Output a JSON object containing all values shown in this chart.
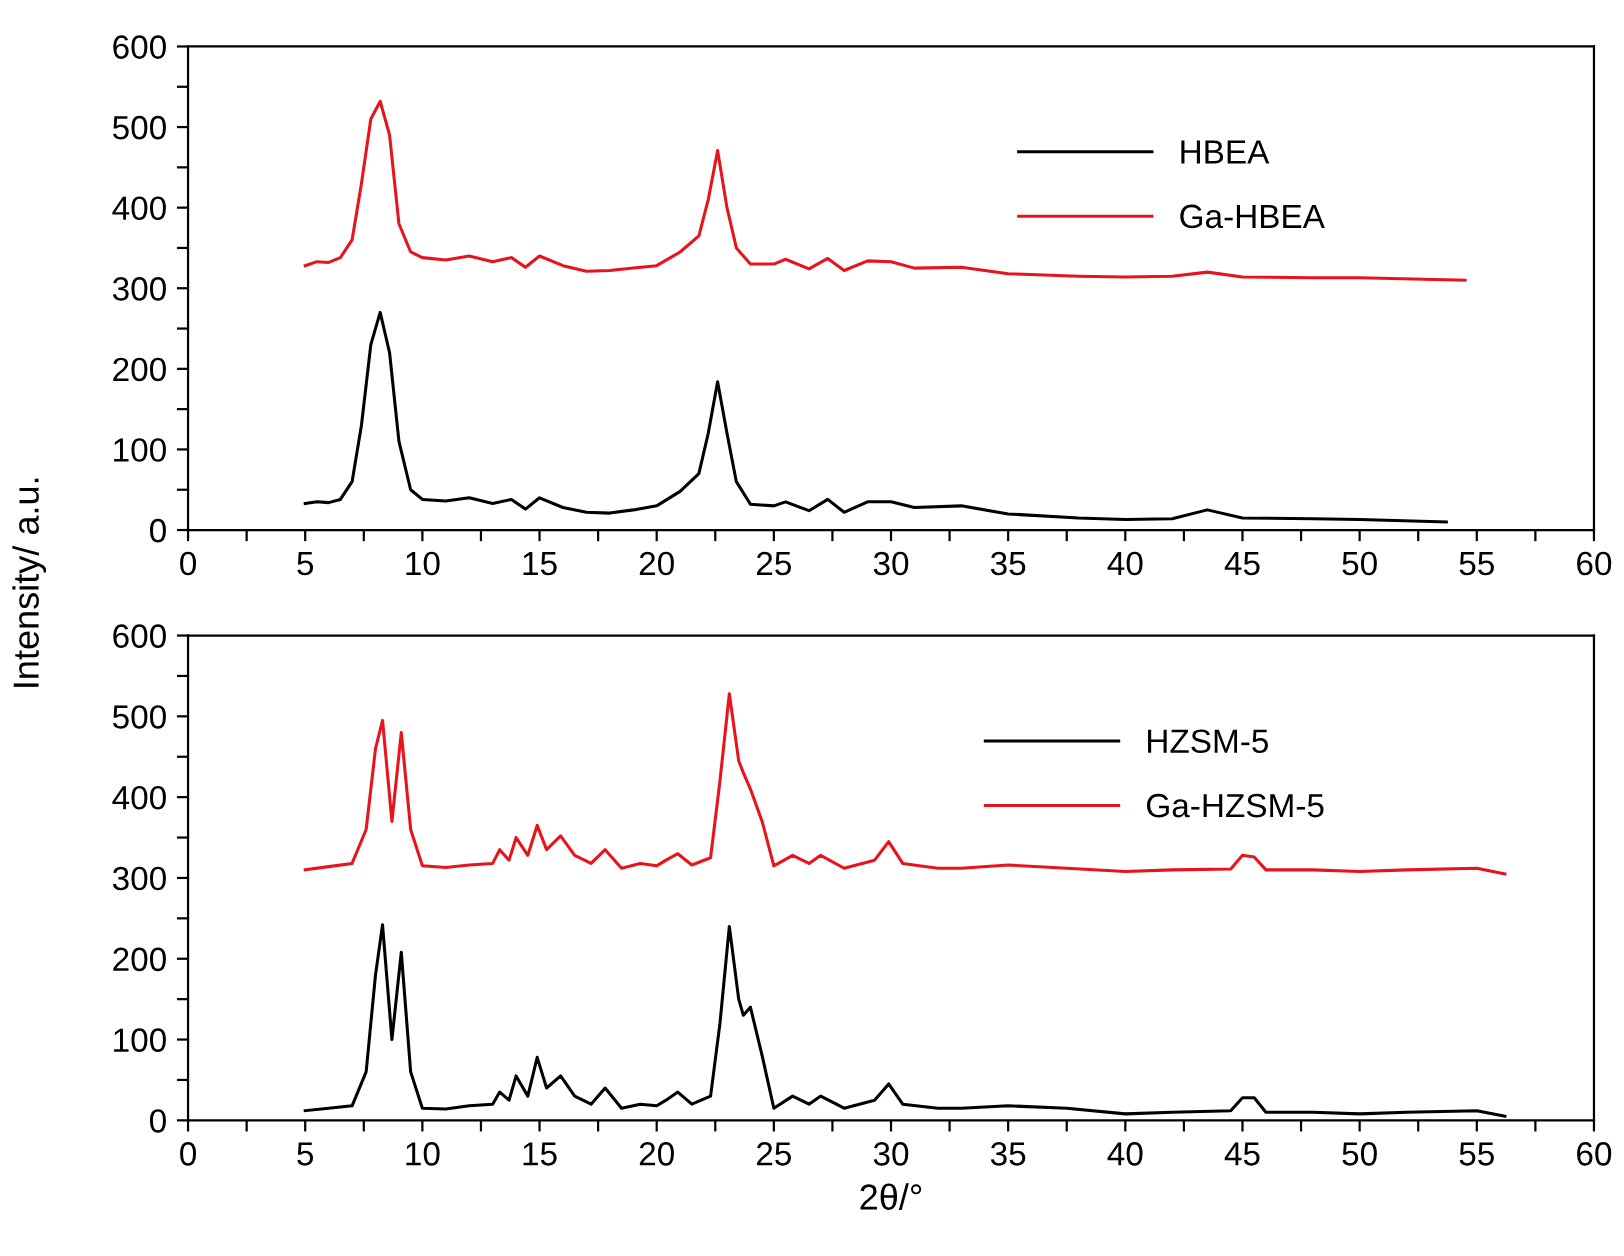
{
  "chart_data": [
    {
      "type": "line",
      "ylabel": "Intensity/ a.u.",
      "legend": "top right",
      "grid": false,
      "xlim": [
        0,
        60
      ],
      "ylim": [
        0,
        600
      ],
      "xticks": [
        0,
        {
          "value": 2.5,
          "label": null
        },
        5,
        {
          "value": 7.5,
          "label": null
        },
        10,
        {
          "value": 12.5,
          "label": null
        },
        15,
        {
          "value": 17.5,
          "label": null
        },
        20,
        {
          "value": 22.5,
          "label": null
        },
        25,
        {
          "value": 27.5,
          "label": null
        },
        30,
        {
          "value": 32.5,
          "label": null
        },
        35,
        {
          "value": 37.5,
          "label": null
        },
        40,
        {
          "value": 42.5,
          "label": null
        },
        45,
        {
          "value": 47.5,
          "label": null
        },
        50,
        {
          "value": 52.5,
          "label": null
        },
        55,
        {
          "value": 57.5,
          "label": null
        },
        60
      ],
      "yticks": [
        0,
        {
          "value": 50,
          "label": null
        },
        100,
        {
          "value": 150,
          "label": null
        },
        200,
        {
          "value": 250,
          "label": null
        },
        300,
        {
          "value": 350,
          "label": null
        },
        400,
        {
          "value": 450,
          "label": null
        },
        500,
        {
          "value": 550,
          "label": null
        },
        600
      ],
      "series": [
        {
          "name": "HBEA",
          "color": "#000000",
          "x": [
            5,
            5.5,
            6,
            6.5,
            7,
            7.4,
            7.8,
            8.2,
            8.6,
            9,
            9.5,
            10,
            11,
            12,
            13,
            13.8,
            14.4,
            15,
            16,
            17,
            18,
            19,
            20,
            21,
            21.8,
            22.2,
            22.6,
            23,
            23.4,
            24,
            25,
            25.5,
            26.5,
            27.3,
            28,
            29,
            30,
            31,
            33,
            35,
            38,
            40,
            42,
            43.5,
            45,
            48,
            50,
            53.7
          ],
          "values": [
            33,
            35,
            34,
            38,
            60,
            130,
            230,
            270,
            220,
            110,
            50,
            38,
            36,
            40,
            33,
            38,
            26,
            40,
            28,
            22,
            21,
            25,
            30,
            48,
            70,
            120,
            184,
            120,
            60,
            32,
            30,
            35,
            24,
            38,
            22,
            35,
            35,
            28,
            30,
            20,
            15,
            13,
            14,
            25,
            15,
            14,
            13,
            10
          ]
        },
        {
          "name": "Ga-HBEA",
          "color": "#e8141c",
          "x": [
            5,
            5.5,
            6,
            6.5,
            7,
            7.4,
            7.8,
            8.2,
            8.6,
            9,
            9.5,
            10,
            11,
            12,
            13,
            13.8,
            14.4,
            15,
            16,
            17,
            18,
            19,
            20,
            21,
            21.8,
            22.2,
            22.6,
            23,
            23.4,
            24,
            25,
            25.5,
            26.5,
            27.3,
            28,
            29,
            30,
            31,
            33,
            35,
            38,
            40,
            42,
            43.5,
            45,
            48,
            50,
            54.5
          ],
          "values": [
            328,
            333,
            332,
            338,
            360,
            430,
            510,
            532,
            490,
            380,
            345,
            338,
            335,
            340,
            333,
            338,
            326,
            340,
            328,
            321,
            322,
            325,
            328,
            345,
            365,
            410,
            471,
            400,
            350,
            330,
            330,
            336,
            324,
            337,
            322,
            334,
            333,
            325,
            326,
            318,
            315,
            314,
            315,
            320,
            314,
            313,
            313,
            310
          ]
        }
      ]
    },
    {
      "type": "line",
      "xlabel": "2θ/°",
      "legend": "top right",
      "grid": false,
      "xlim": [
        0,
        60
      ],
      "ylim": [
        0,
        600
      ],
      "xticks": [
        0,
        {
          "value": 2.5,
          "label": null
        },
        5,
        {
          "value": 7.5,
          "label": null
        },
        10,
        {
          "value": 12.5,
          "label": null
        },
        15,
        {
          "value": 17.5,
          "label": null
        },
        20,
        {
          "value": 22.5,
          "label": null
        },
        25,
        {
          "value": 27.5,
          "label": null
        },
        30,
        {
          "value": 32.5,
          "label": null
        },
        35,
        {
          "value": 37.5,
          "label": null
        },
        40,
        {
          "value": 42.5,
          "label": null
        },
        45,
        {
          "value": 47.5,
          "label": null
        },
        50,
        {
          "value": 52.5,
          "label": null
        },
        55,
        {
          "value": 57.5,
          "label": null
        },
        60
      ],
      "yticks": [
        0,
        {
          "value": 50,
          "label": null
        },
        100,
        {
          "value": 150,
          "label": null
        },
        200,
        {
          "value": 250,
          "label": null
        },
        300,
        {
          "value": 350,
          "label": null
        },
        400,
        {
          "value": 450,
          "label": null
        },
        500,
        {
          "value": 550,
          "label": null
        },
        600
      ],
      "series": [
        {
          "name": "HZSM-5",
          "color": "#000000",
          "x": [
            5,
            6,
            7,
            7.6,
            8,
            8.3,
            8.7,
            9.1,
            9.5,
            10,
            11,
            12,
            13,
            13.3,
            13.7,
            14,
            14.5,
            14.9,
            15.3,
            15.9,
            16.5,
            17.2,
            17.8,
            18.5,
            19.3,
            20,
            20.4,
            20.9,
            21.5,
            22.3,
            22.7,
            23.1,
            23.5,
            23.7,
            24,
            24.5,
            25,
            25.8,
            26.5,
            27,
            28,
            29.3,
            29.9,
            30.5,
            32,
            33,
            35,
            37.5,
            40,
            42,
            44.5,
            45,
            45.5,
            46,
            48,
            50,
            52,
            55,
            56.2
          ],
          "values": [
            12,
            15,
            18,
            60,
            180,
            242,
            100,
            208,
            60,
            15,
            14,
            18,
            20,
            35,
            25,
            55,
            30,
            78,
            40,
            55,
            30,
            20,
            40,
            15,
            20,
            18,
            25,
            35,
            20,
            30,
            120,
            240,
            150,
            130,
            140,
            80,
            15,
            30,
            20,
            30,
            15,
            25,
            45,
            20,
            15,
            15,
            18,
            15,
            8,
            10,
            12,
            28,
            28,
            10,
            10,
            8,
            10,
            12,
            5
          ]
        },
        {
          "name": "Ga-HZSM-5",
          "color": "#e8141c",
          "x": [
            5,
            6,
            7,
            7.6,
            8,
            8.3,
            8.7,
            9.1,
            9.5,
            10,
            11,
            12,
            13,
            13.3,
            13.7,
            14,
            14.5,
            14.9,
            15.3,
            15.9,
            16.5,
            17.2,
            17.8,
            18.5,
            19.3,
            20,
            20.4,
            20.9,
            21.5,
            22.3,
            22.7,
            23.1,
            23.5,
            23.7,
            24,
            24.5,
            25,
            25.8,
            26.5,
            27,
            28,
            29.3,
            29.9,
            30.5,
            32,
            33,
            35,
            37.5,
            40,
            42,
            44.5,
            45,
            45.5,
            46,
            48,
            50,
            52,
            55,
            56.2
          ],
          "values": [
            310,
            314,
            318,
            360,
            460,
            495,
            370,
            480,
            360,
            315,
            313,
            316,
            318,
            335,
            322,
            350,
            328,
            365,
            335,
            352,
            328,
            318,
            335,
            312,
            318,
            315,
            322,
            330,
            316,
            325,
            420,
            528,
            445,
            430,
            410,
            370,
            315,
            328,
            318,
            328,
            312,
            322,
            345,
            318,
            312,
            312,
            316,
            312,
            308,
            310,
            311,
            328,
            326,
            310,
            310,
            308,
            310,
            312,
            305
          ]
        }
      ]
    }
  ]
}
